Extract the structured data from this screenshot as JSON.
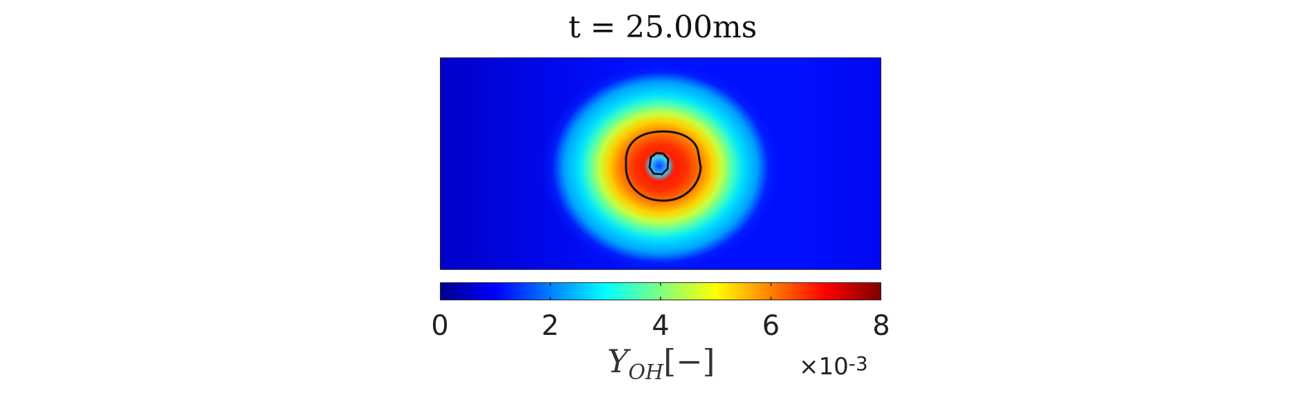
{
  "chart_data": {
    "type": "heatmap",
    "title": "t = 25.00ms",
    "colormap": "jet",
    "colorbar": {
      "orientation": "horizontal",
      "placement": "bottom",
      "range": [
        0,
        8
      ],
      "ticks": [
        "0",
        "2",
        "4",
        "6",
        "8"
      ],
      "label_symbol": "Y",
      "label_subscript": "OH",
      "label_unit": "[−]",
      "exponent_prefix": "×10",
      "exponent": "-3"
    },
    "field": {
      "background_value": 1.0,
      "far_left_value": 0.4,
      "peak_value": 7.4,
      "core_value": 1.8,
      "peak_location": "near center, slightly left of center",
      "contours": 2
    }
  }
}
